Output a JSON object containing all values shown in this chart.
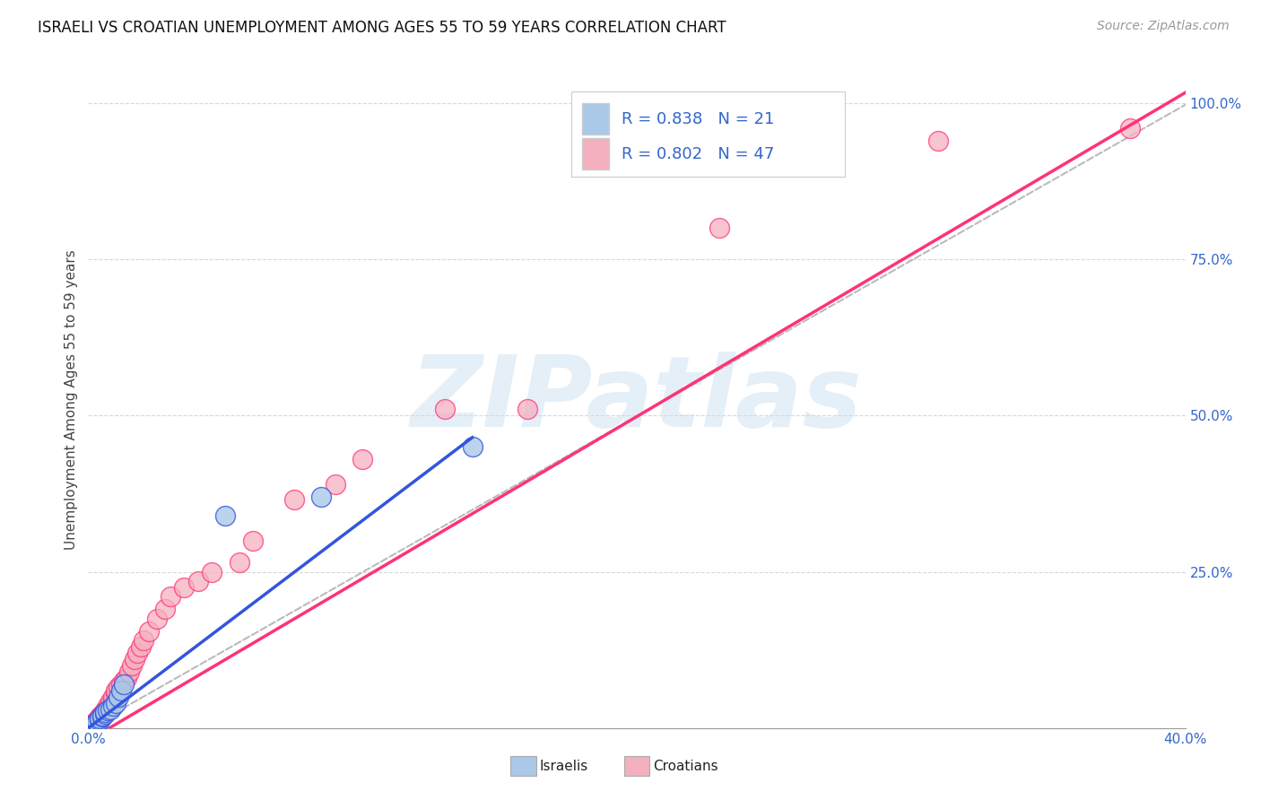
{
  "title": "ISRAELI VS CROATIAN UNEMPLOYMENT AMONG AGES 55 TO 59 YEARS CORRELATION CHART",
  "source": "Source: ZipAtlas.com",
  "ylabel": "Unemployment Among Ages 55 to 59 years",
  "xlim": [
    0.0,
    0.4
  ],
  "ylim": [
    0.0,
    1.05
  ],
  "xticks": [
    0.0,
    0.05,
    0.1,
    0.15,
    0.2,
    0.25,
    0.3,
    0.35,
    0.4
  ],
  "yticks": [
    0.0,
    0.25,
    0.5,
    0.75,
    1.0
  ],
  "ytick_labels": [
    "",
    "25.0%",
    "50.0%",
    "75.0%",
    "100.0%"
  ],
  "xtick_labels": [
    "0.0%",
    "",
    "",
    "",
    "",
    "",
    "",
    "",
    "40.0%"
  ],
  "background_color": "#ffffff",
  "grid_color": "#d8d8d8",
  "watermark_text": "ZIPatlas",
  "legend_R_israeli": "0.838",
  "legend_N_israeli": "21",
  "legend_R_croatian": "0.802",
  "legend_N_croatian": "47",
  "israeli_color": "#aac8e8",
  "croatian_color": "#f5b0c0",
  "israeli_line_color": "#3355dd",
  "croatian_line_color": "#ff3377",
  "ref_line_color": "#bbbbbb",
  "israeli_scatter_x": [
    0.001,
    0.002,
    0.002,
    0.003,
    0.003,
    0.004,
    0.004,
    0.005,
    0.005,
    0.006,
    0.006,
    0.007,
    0.008,
    0.009,
    0.01,
    0.011,
    0.012,
    0.013,
    0.05,
    0.085,
    0.14
  ],
  "israeli_scatter_y": [
    0.002,
    0.004,
    0.006,
    0.008,
    0.01,
    0.012,
    0.015,
    0.018,
    0.02,
    0.022,
    0.025,
    0.028,
    0.03,
    0.035,
    0.04,
    0.05,
    0.06,
    0.07,
    0.34,
    0.37,
    0.45
  ],
  "croatian_scatter_x": [
    0.001,
    0.001,
    0.002,
    0.002,
    0.003,
    0.003,
    0.004,
    0.004,
    0.005,
    0.005,
    0.006,
    0.006,
    0.007,
    0.007,
    0.008,
    0.008,
    0.009,
    0.009,
    0.01,
    0.01,
    0.011,
    0.012,
    0.013,
    0.014,
    0.015,
    0.016,
    0.017,
    0.018,
    0.019,
    0.02,
    0.022,
    0.025,
    0.028,
    0.03,
    0.035,
    0.04,
    0.045,
    0.055,
    0.06,
    0.075,
    0.09,
    0.1,
    0.13,
    0.16,
    0.23,
    0.31,
    0.38
  ],
  "croatian_scatter_y": [
    0.003,
    0.005,
    0.006,
    0.008,
    0.01,
    0.012,
    0.015,
    0.018,
    0.02,
    0.022,
    0.025,
    0.028,
    0.03,
    0.035,
    0.038,
    0.042,
    0.045,
    0.05,
    0.055,
    0.06,
    0.065,
    0.07,
    0.075,
    0.08,
    0.09,
    0.1,
    0.11,
    0.12,
    0.13,
    0.14,
    0.155,
    0.175,
    0.19,
    0.21,
    0.225,
    0.235,
    0.25,
    0.265,
    0.3,
    0.365,
    0.39,
    0.43,
    0.51,
    0.51,
    0.8,
    0.94,
    0.96
  ],
  "pink_line_x": [
    0.0,
    0.405
  ],
  "pink_line_y": [
    -0.02,
    1.03
  ],
  "blue_line_x": [
    0.0,
    0.14
  ],
  "blue_line_y": [
    0.0,
    0.465
  ],
  "ref_line_x": [
    0.0,
    0.405
  ],
  "ref_line_y": [
    0.0,
    1.01
  ]
}
